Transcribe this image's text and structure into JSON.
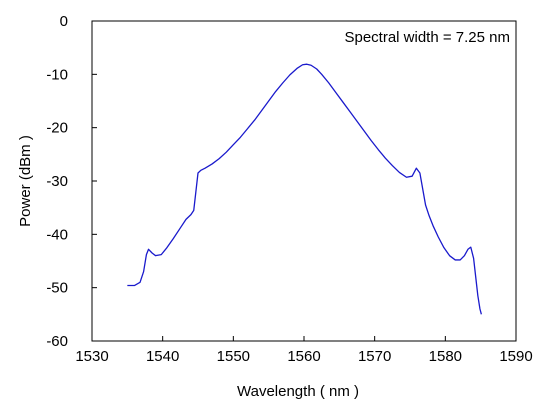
{
  "chart_data": {
    "type": "line",
    "title": "",
    "xlabel": "Wavelength ( nm )",
    "ylabel": "Power (dBm )",
    "xlim": [
      1530,
      1590
    ],
    "ylim": [
      -60,
      0
    ],
    "xticks": [
      1530,
      1540,
      1550,
      1560,
      1570,
      1580,
      1590
    ],
    "yticks": [
      0,
      -10,
      -20,
      -30,
      -40,
      -50,
      -60
    ],
    "grid": false,
    "annotation": "Spectral width = 7.25 nm",
    "line_color": "#1a1acc",
    "series": [
      {
        "x": [
          1535.0,
          1536.0,
          1536.8,
          1537.3,
          1537.7,
          1538.0,
          1538.5,
          1539.0,
          1539.8,
          1540.6,
          1541.5,
          1542.5,
          1543.3,
          1544.0,
          1544.4,
          1544.7,
          1545.0,
          1545.4,
          1546.0,
          1547.0,
          1548.0,
          1549.0,
          1550.0,
          1551.0,
          1552.0,
          1553.0,
          1554.0,
          1555.0,
          1556.0,
          1557.0,
          1558.0,
          1559.0,
          1559.8,
          1560.4,
          1561.0,
          1561.8,
          1562.5,
          1563.5,
          1564.5,
          1565.5,
          1566.5,
          1567.5,
          1568.5,
          1569.5,
          1570.5,
          1571.5,
          1572.5,
          1573.5,
          1574.5,
          1575.3,
          1575.9,
          1576.4,
          1576.8,
          1577.2,
          1577.7,
          1578.3,
          1579.0,
          1579.8,
          1580.6,
          1581.4,
          1582.1,
          1582.7,
          1583.2,
          1583.6,
          1584.0,
          1584.3,
          1584.6,
          1584.9,
          1585.1
        ],
        "y": [
          -49.6,
          -49.6,
          -49.0,
          -47.0,
          -43.8,
          -42.8,
          -43.5,
          -44.0,
          -43.8,
          -42.5,
          -40.8,
          -38.8,
          -37.2,
          -36.3,
          -35.5,
          -32.0,
          -28.5,
          -28.0,
          -27.6,
          -26.8,
          -25.8,
          -24.6,
          -23.2,
          -21.8,
          -20.2,
          -18.6,
          -16.8,
          -15.0,
          -13.2,
          -11.6,
          -10.1,
          -8.9,
          -8.2,
          -8.1,
          -8.3,
          -9.0,
          -10.0,
          -11.6,
          -13.4,
          -15.2,
          -17.0,
          -18.8,
          -20.6,
          -22.4,
          -24.1,
          -25.7,
          -27.1,
          -28.4,
          -29.3,
          -29.1,
          -27.6,
          -28.5,
          -31.5,
          -34.5,
          -36.5,
          -38.5,
          -40.5,
          -42.5,
          -44.0,
          -44.8,
          -44.8,
          -44.0,
          -42.8,
          -42.4,
          -44.5,
          -48.0,
          -51.5,
          -54.0,
          -55.0
        ]
      }
    ]
  }
}
